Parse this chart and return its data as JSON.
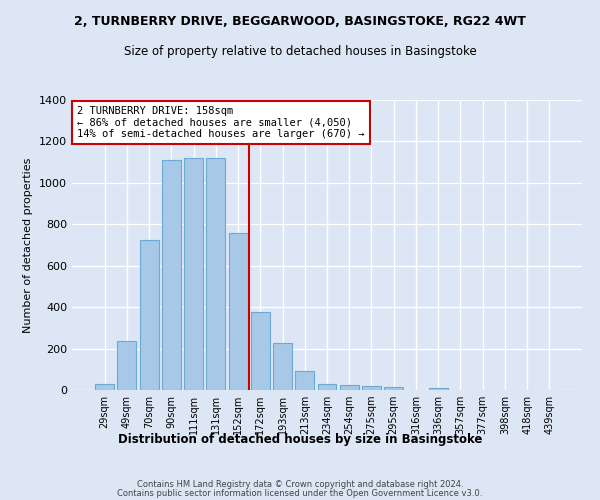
{
  "title_line1": "2, TURNBERRY DRIVE, BEGGARWOOD, BASINGSTOKE, RG22 4WT",
  "title_line2": "Size of property relative to detached houses in Basingstoke",
  "xlabel": "Distribution of detached houses by size in Basingstoke",
  "ylabel": "Number of detached properties",
  "categories": [
    "29sqm",
    "49sqm",
    "70sqm",
    "90sqm",
    "111sqm",
    "131sqm",
    "152sqm",
    "172sqm",
    "193sqm",
    "213sqm",
    "234sqm",
    "254sqm",
    "275sqm",
    "295sqm",
    "316sqm",
    "336sqm",
    "357sqm",
    "377sqm",
    "398sqm",
    "418sqm",
    "439sqm"
  ],
  "values": [
    30,
    235,
    725,
    1110,
    1120,
    1120,
    760,
    375,
    225,
    90,
    30,
    25,
    20,
    15,
    0,
    10,
    0,
    0,
    0,
    0,
    0
  ],
  "bar_color": "#a8c8e8",
  "bar_edge_color": "#6aaad4",
  "vline_x_idx": 7,
  "vline_color": "#cc0000",
  "annotation_text": "2 TURNBERRY DRIVE: 158sqm\n← 86% of detached houses are smaller (4,050)\n14% of semi-detached houses are larger (670) →",
  "annotation_box_color": "#ffffff",
  "annotation_box_edge_color": "#cc0000",
  "footer_line1": "Contains HM Land Registry data © Crown copyright and database right 2024.",
  "footer_line2": "Contains public sector information licensed under the Open Government Licence v3.0.",
  "ylim": [
    0,
    1400
  ],
  "figsize": [
    6.0,
    5.0
  ],
  "dpi": 100,
  "bg_color": "#dce6f5",
  "grid_color": "#ffffff"
}
